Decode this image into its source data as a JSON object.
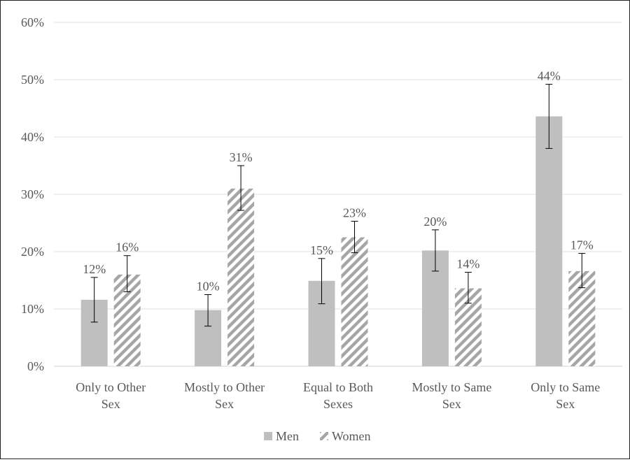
{
  "chart_data": {
    "type": "bar",
    "categories": [
      [
        "Only to Other",
        "Sex"
      ],
      [
        "Mostly to Other",
        "Sex"
      ],
      [
        "Equal to Both",
        "Sexes"
      ],
      [
        "Mostly to Same",
        "Sex"
      ],
      [
        "Only to Same",
        "Sex"
      ]
    ],
    "series": [
      {
        "name": "Men",
        "values": [
          11.6,
          9.8,
          14.9,
          20.2,
          43.6
        ],
        "labels": [
          "12%",
          "10%",
          "15%",
          "20%",
          "44%"
        ],
        "error_low": [
          7.7,
          7.0,
          10.9,
          16.6,
          38.0
        ],
        "error_high": [
          15.5,
          12.5,
          18.8,
          23.8,
          49.2
        ],
        "fill": "solid",
        "color": "#bfbfbf"
      },
      {
        "name": "Women",
        "values": [
          16.0,
          31.0,
          22.5,
          13.6,
          16.6
        ],
        "labels": [
          "16%",
          "31%",
          "23%",
          "14%",
          "17%"
        ],
        "error_low": [
          13.0,
          27.2,
          19.8,
          11.0,
          13.7
        ],
        "error_high": [
          19.3,
          35.0,
          25.3,
          16.4,
          19.7
        ],
        "fill": "diagonal-stripes",
        "color": "#a6a6a6"
      }
    ],
    "ylim": [
      0,
      60
    ],
    "yticks": [
      0,
      10,
      20,
      30,
      40,
      50,
      60
    ],
    "ytick_labels": [
      "0%",
      "10%",
      "20%",
      "30%",
      "40%",
      "50%",
      "60%"
    ],
    "title": "",
    "xlabel": "",
    "ylabel": "",
    "grid": "horizontal",
    "legend_position": "bottom-center",
    "colors": {
      "gridline": "#e0e0e0",
      "axis": "#d0d0d0",
      "text": "#595959",
      "error_bar": "#000000"
    }
  }
}
